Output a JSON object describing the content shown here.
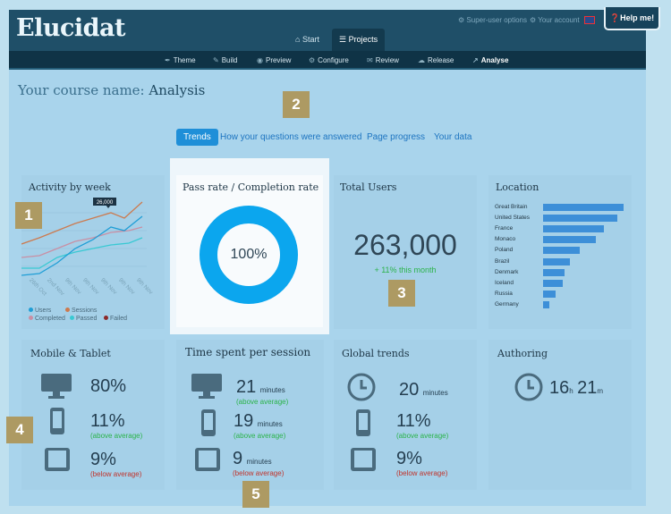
{
  "app": {
    "logo": "Elucidat",
    "super_user": "Super-user options",
    "account": "Your account",
    "help": "Help me!"
  },
  "main_tabs": [
    {
      "label": "Start"
    },
    {
      "label": "Projects"
    }
  ],
  "sub_nav": [
    {
      "label": "Theme",
      "icon": "brush-icon"
    },
    {
      "label": "Build",
      "icon": "pencil-icon"
    },
    {
      "label": "Preview",
      "icon": "eye-icon"
    },
    {
      "label": "Configure",
      "icon": "gears-icon"
    },
    {
      "label": "Review",
      "icon": "comments-icon"
    },
    {
      "label": "Release",
      "icon": "cloud-icon"
    },
    {
      "label": "Analyse",
      "icon": "chart-icon"
    }
  ],
  "page": {
    "title_prefix": "Your course name:",
    "title_main": "Analysis"
  },
  "subtabs": [
    "Trends",
    "How your questions were answered",
    "Page progress",
    "Your data"
  ],
  "badges": [
    "1",
    "2",
    "3",
    "4",
    "5"
  ],
  "activity": {
    "title": "Activity by week",
    "callout": "26,000",
    "x_ticks": [
      "26th Oct",
      "2nd Nov",
      "9th Nov",
      "9th Nov",
      "9th Nov",
      "9th Nov",
      "9th Nov"
    ],
    "legend": [
      {
        "label": "Users",
        "color": "#1f9ed6"
      },
      {
        "label": "Sessions",
        "color": "#cc7a4f"
      },
      {
        "label": "Completed",
        "color": "#c98fa4"
      },
      {
        "label": "Passed",
        "color": "#39c9d3"
      },
      {
        "label": "Failed",
        "color": "#8b2a2a"
      }
    ]
  },
  "pass_rate": {
    "title": "Pass rate / Completion rate",
    "value": "100%",
    "fraction": 1.0
  },
  "total_users": {
    "title": "Total Users",
    "value": "263,000",
    "change": "+ 11% this month"
  },
  "location": {
    "title": "Location",
    "items": [
      {
        "country": "Great Britain",
        "value": 100
      },
      {
        "country": "United States",
        "value": 92
      },
      {
        "country": "France",
        "value": 76
      },
      {
        "country": "Monaco",
        "value": 65
      },
      {
        "country": "Poland",
        "value": 45
      },
      {
        "country": "Brazil",
        "value": 33
      },
      {
        "country": "Denmark",
        "value": 27
      },
      {
        "country": "Iceland",
        "value": 24
      },
      {
        "country": "Russia",
        "value": 16
      },
      {
        "country": "Germany",
        "value": 8
      }
    ]
  },
  "mobile": {
    "title": "Mobile & Tablet",
    "rows": [
      {
        "icon": "desktop-icon",
        "value": "80%",
        "note": ""
      },
      {
        "icon": "phone-icon",
        "value": "11%",
        "note": "(above average)"
      },
      {
        "icon": "tablet-icon",
        "value": "9%",
        "note": "(below average)"
      }
    ]
  },
  "time_spent": {
    "title": "Time spent per session",
    "rows": [
      {
        "icon": "desktop-icon",
        "value": "21",
        "unit": "minutes",
        "note": "(above average)"
      },
      {
        "icon": "phone-icon",
        "value": "19",
        "unit": "minutes",
        "note": "(above average)"
      },
      {
        "icon": "tablet-icon",
        "value": "9",
        "unit": "minutes",
        "note": "(below average)"
      }
    ]
  },
  "global": {
    "title": "Global trends",
    "rows": [
      {
        "icon": "clock-icon",
        "value": "20",
        "unit": "minutes",
        "note": ""
      },
      {
        "icon": "phone-icon",
        "value": "11%",
        "unit": "",
        "note": "(above average)"
      },
      {
        "icon": "tablet-icon",
        "value": "9%",
        "unit": "",
        "note": "(below average)"
      }
    ]
  },
  "authoring": {
    "title": "Authoring",
    "hours": "16",
    "h_unit": "h",
    "minutes": "21",
    "m_unit": "m"
  },
  "colors": {
    "topbar": "#1f4f68",
    "accent": "#1f8fd8",
    "badge": "#ad9a63",
    "green": "#2bb34a",
    "red": "#c0332b",
    "donut": "#0ba6ee"
  }
}
